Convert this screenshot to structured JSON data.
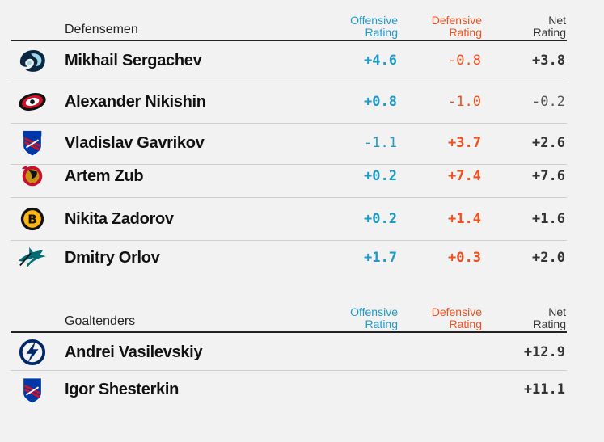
{
  "columns": {
    "offensive": [
      "Offensive",
      "Rating"
    ],
    "defensive": [
      "Defensive",
      "Rating"
    ],
    "net": [
      "Net",
      "Rating"
    ]
  },
  "defensemen": {
    "title": "Defensemen",
    "players": [
      {
        "name": "Mikhail Sergachev",
        "team_icon": "kraken-logo-icon",
        "offensive": "+4.6",
        "defensive": "-0.8",
        "net": "+3.8"
      },
      {
        "name": "Alexander Nikishin",
        "team_icon": "hurricanes-logo-icon",
        "offensive": "+0.8",
        "defensive": "-1.0",
        "net": "-0.2"
      },
      {
        "name": "Vladislav Gavrikov",
        "team_icon": "rangers-logo-icon",
        "offensive": "-1.1",
        "defensive": "+3.7",
        "net": "+2.6"
      },
      {
        "name": "Artem Zub",
        "team_icon": "senators-logo-icon",
        "offensive": "+0.2",
        "defensive": "+7.4",
        "net": "+7.6"
      },
      {
        "name": "Nikita Zadorov",
        "team_icon": "bruins-logo-icon",
        "offensive": "+0.2",
        "defensive": "+1.4",
        "net": "+1.6"
      },
      {
        "name": "Dmitry Orlov",
        "team_icon": "sharks-logo-icon",
        "offensive": "+1.7",
        "defensive": "+0.3",
        "net": "+2.0"
      }
    ]
  },
  "goaltenders": {
    "title": "Goaltenders",
    "players": [
      {
        "name": "Andrei Vasilevskiy",
        "team_icon": "lightning-logo-icon",
        "net": "+12.9"
      },
      {
        "name": "Igor Shesterkin",
        "team_icon": "rangers-logo-icon",
        "net": "+11.1"
      }
    ]
  },
  "colors": {
    "offensive": "#1f9bc9",
    "defensive": "#f0501e",
    "rule": "#222222",
    "background": "#f2f2f2"
  }
}
